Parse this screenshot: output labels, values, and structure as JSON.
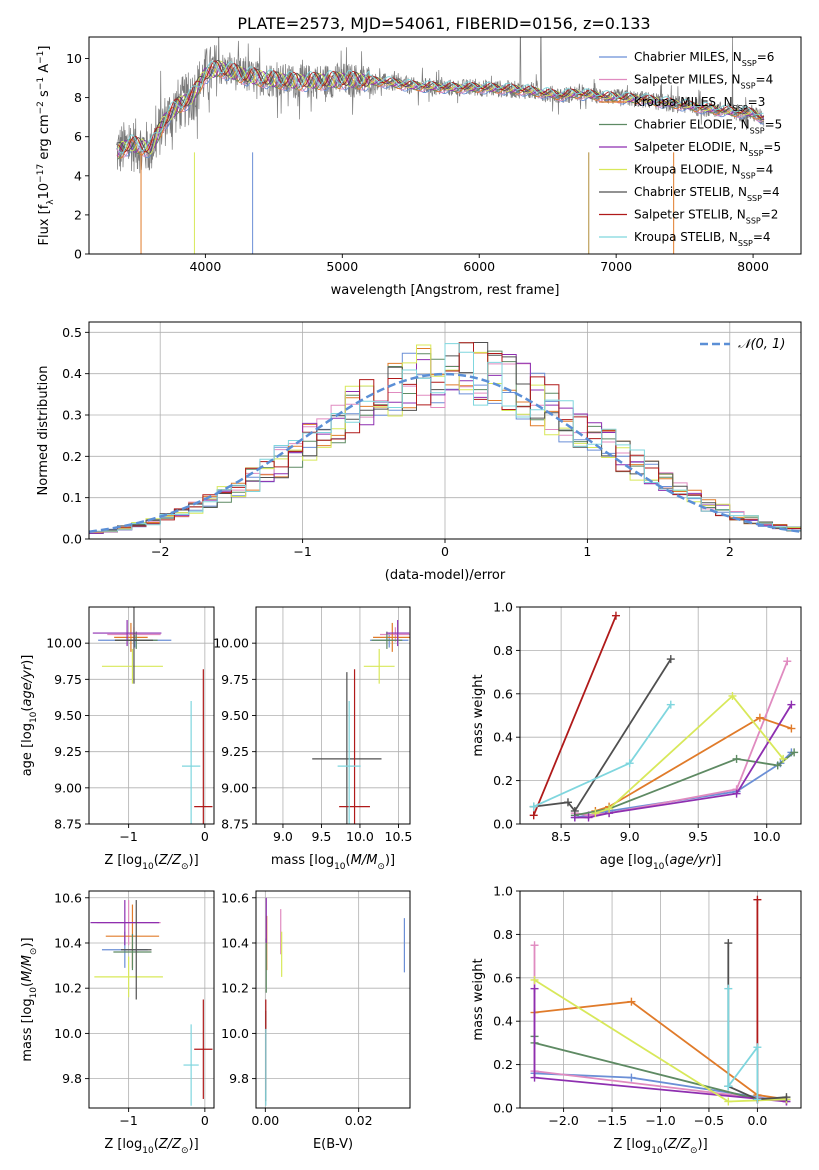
{
  "title": "PLATE=2573, MJD=54061, FIBERID=0156, z=0.133",
  "colors": [
    "#6b8fd6",
    "#e08bc0",
    "#e07b2a",
    "#5e8a63",
    "#8e2fb0",
    "#d8e85a",
    "#505050",
    "#b01a1a",
    "#7fd6de"
  ],
  "chart_data": [
    {
      "id": "spectrum",
      "type": "line",
      "xlabel": "wavelength [Angstrom, rest frame]",
      "ylabel": "Flux [fλ 10⁻¹⁷ erg cm⁻² s⁻¹ A⁻¹]",
      "xlim": [
        3150,
        8350
      ],
      "ylim": [
        0,
        11.1
      ],
      "xticks": [
        4000,
        5000,
        6000,
        7000,
        8000
      ],
      "yticks": [
        0,
        2,
        4,
        6,
        8,
        10
      ],
      "grid": false,
      "legend_position": "top-right",
      "legend": [
        "Chabrier MILES, N_SSP=6",
        "Salpeter MILES, N_SSP=4",
        "Kroupa MILES, N_SSP=3",
        "Chabrier ELODIE, N_SSP=5",
        "Salpeter ELODIE, N_SSP=5",
        "Kroupa ELODIE, N_SSP=4",
        "Chabrier STELIB, N_SSP=4",
        "Salpeter STELIB, N_SSP=2",
        "Kroupa STELIB, N_SSP=4"
      ],
      "legend_display": [
        {
          "pre": "Chabrier MILES, N",
          "sub": "SSP",
          "post": "=6"
        },
        {
          "pre": "Salpeter MILES, N",
          "sub": "SSP",
          "post": "=4"
        },
        {
          "pre": "Kroupa MILES, N",
          "sub": "SSP",
          "post": "=3"
        },
        {
          "pre": "Chabrier ELODIE, N",
          "sub": "SSP",
          "post": "=5"
        },
        {
          "pre": "Salpeter ELODIE, N",
          "sub": "SSP",
          "post": "=5"
        },
        {
          "pre": "Kroupa ELODIE, N",
          "sub": "SSP",
          "post": "=4"
        },
        {
          "pre": "Chabrier STELIB, N",
          "sub": "SSP",
          "post": "=4"
        },
        {
          "pre": "Salpeter STELIB, N",
          "sub": "SSP",
          "post": "=2"
        },
        {
          "pre": "Kroupa STELIB, N",
          "sub": "SSP",
          "post": "=4"
        }
      ],
      "continuum": {
        "x": [
          3350,
          3450,
          3600,
          3700,
          3800,
          3900,
          4000,
          4100,
          4200,
          4300,
          4500,
          4700,
          5000,
          5300,
          5500,
          5800,
          6000,
          6300,
          6500,
          6600,
          6700,
          7000,
          7200,
          7500,
          7800,
          8000,
          8080
        ],
        "y": [
          5.2,
          5.6,
          5.4,
          6.8,
          7.6,
          8.0,
          9.2,
          9.5,
          9.3,
          9.1,
          8.9,
          8.8,
          8.9,
          8.8,
          8.6,
          8.5,
          8.5,
          8.4,
          8.2,
          8.1,
          8.2,
          8.0,
          7.9,
          7.6,
          7.3,
          7.2,
          6.9
        ]
      }
    },
    {
      "id": "residuals",
      "type": "histogram",
      "xlabel": "(data-model)/error",
      "ylabel": "Normed distribution",
      "xlim": [
        -2.5,
        2.5
      ],
      "ylim": [
        0,
        0.525
      ],
      "xticks": [
        -2,
        -1,
        0,
        1,
        2
      ],
      "yticks": [
        0.0,
        0.1,
        0.2,
        0.3,
        0.4,
        0.5
      ],
      "grid": true,
      "legend_position": "top-right",
      "reference_curve": {
        "label": "N(0,1)",
        "display": "𝒩(0, 1)",
        "mu": 0,
        "sigma": 1
      },
      "bin_width": 0.1
    },
    {
      "id": "age_vs_Z",
      "type": "scatter",
      "xlabel": "Z [log10(Z/Z⊙)]",
      "ylabel": "age [log10(age/yr)]",
      "xlim": [
        -1.52,
        0.12
      ],
      "ylim": [
        8.75,
        10.25
      ],
      "xticks": [
        -1,
        0
      ],
      "yticks": [
        8.75,
        9.0,
        9.25,
        9.5,
        9.75,
        10.0
      ],
      "grid": true,
      "points": [
        {
          "x": -0.92,
          "y": 10.02,
          "xerr": 0.48,
          "yerr": 0.05
        },
        {
          "x": -0.93,
          "y": 10.06,
          "xerr": 0.35,
          "yerr": 0.05
        },
        {
          "x": -0.97,
          "y": 10.04,
          "xerr": 0.22,
          "yerr": 0.1
        },
        {
          "x": -0.9,
          "y": 10.02,
          "xerr": 0.28,
          "yerr": 0.06
        },
        {
          "x": -1.02,
          "y": 10.07,
          "xerr": 0.45,
          "yerr": 0.09
        },
        {
          "x": -0.95,
          "y": 9.84,
          "xerr": 0.4,
          "yerr": 0.12
        },
        {
          "x": -0.93,
          "y": 10.02,
          "xerr": 0.25,
          "yerr": 0.3
        },
        {
          "x": -0.02,
          "y": 8.87,
          "xerr": 0.12,
          "yerr": 0.95
        },
        {
          "x": -0.18,
          "y": 9.15,
          "xerr": 0.12,
          "yerr": 0.45
        }
      ]
    },
    {
      "id": "age_vs_mass",
      "type": "scatter",
      "xlabel": "mass [log10(M/M⊙)]",
      "ylabel": "",
      "xlim": [
        8.65,
        10.65
      ],
      "ylim": [
        8.75,
        10.25
      ],
      "xticks": [
        9.0,
        9.5,
        10.0,
        10.5
      ],
      "yticks": [
        8.75,
        9.0,
        9.25,
        9.5,
        9.75,
        10.0
      ],
      "grid": true,
      "points": [
        {
          "x": 10.38,
          "y": 10.02,
          "xerr": 0.25,
          "yerr": 0.05
        },
        {
          "x": 10.46,
          "y": 10.06,
          "xerr": 0.2,
          "yerr": 0.05
        },
        {
          "x": 10.42,
          "y": 10.04,
          "xerr": 0.25,
          "yerr": 0.1
        },
        {
          "x": 10.35,
          "y": 10.02,
          "xerr": 0.2,
          "yerr": 0.06
        },
        {
          "x": 10.49,
          "y": 10.07,
          "xerr": 0.15,
          "yerr": 0.09
        },
        {
          "x": 10.25,
          "y": 9.84,
          "xerr": 0.2,
          "yerr": 0.12
        },
        {
          "x": 9.83,
          "y": 9.2,
          "xerr": 0.45,
          "yerr": 0.6
        },
        {
          "x": 9.93,
          "y": 8.87,
          "xerr": 0.2,
          "yerr": 0.95
        },
        {
          "x": 9.86,
          "y": 9.15,
          "xerr": 0.15,
          "yerr": 0.45
        }
      ]
    },
    {
      "id": "massweight_vs_age",
      "type": "line",
      "xlabel": "age [log10(age/yr)]",
      "ylabel": "mass weight",
      "xlim": [
        8.2,
        10.25
      ],
      "ylim": [
        0.0,
        1.0
      ],
      "xticks": [
        8.5,
        9.0,
        9.5,
        10.0
      ],
      "yticks": [
        0.0,
        0.2,
        0.4,
        0.6,
        0.8,
        1.0
      ],
      "grid": true,
      "series": [
        {
          "x": [
            8.6,
            8.7,
            8.85,
            9.78,
            10.1,
            10.18
          ],
          "y": [
            0.03,
            0.04,
            0.06,
            0.15,
            0.28,
            0.33
          ]
        },
        {
          "x": [
            8.6,
            8.7,
            8.85,
            9.78,
            10.15
          ],
          "y": [
            0.05,
            0.04,
            0.05,
            0.16,
            0.75
          ]
        },
        {
          "x": [
            8.75,
            8.85,
            9.95,
            10.18
          ],
          "y": [
            0.06,
            0.08,
            0.49,
            0.44
          ]
        },
        {
          "x": [
            8.6,
            8.85,
            9.78,
            10.08,
            10.2
          ],
          "y": [
            0.04,
            0.07,
            0.3,
            0.27,
            0.33
          ]
        },
        {
          "x": [
            8.6,
            8.7,
            8.85,
            9.78,
            10.18
          ],
          "y": [
            0.03,
            0.03,
            0.05,
            0.14,
            0.55
          ]
        },
        {
          "x": [
            8.75,
            8.85,
            9.75,
            10.12
          ],
          "y": [
            0.05,
            0.07,
            0.59,
            0.3
          ]
        },
        {
          "x": [
            8.3,
            8.55,
            8.6,
            9.3
          ],
          "y": [
            0.08,
            0.1,
            0.06,
            0.76
          ]
        },
        {
          "x": [
            8.3,
            8.9
          ],
          "y": [
            0.04,
            0.96
          ]
        },
        {
          "x": [
            8.3,
            9.0,
            9.3
          ],
          "y": [
            0.08,
            0.28,
            0.55
          ]
        }
      ]
    },
    {
      "id": "mass_vs_Z",
      "type": "scatter",
      "xlabel": "Z [log10(Z/Z⊙)]",
      "ylabel": "mass [log10(M/M⊙)]",
      "xlim": [
        -1.52,
        0.12
      ],
      "ylim": [
        9.67,
        10.63
      ],
      "xticks": [
        -1,
        0
      ],
      "yticks": [
        9.8,
        10.0,
        10.2,
        10.4,
        10.6
      ],
      "grid": true,
      "points": [
        {
          "x": -1.05,
          "y": 10.37,
          "xerr": 0.3,
          "yerr": 0.08
        },
        {
          "x": -1.0,
          "y": 10.49,
          "xerr": 0.42,
          "yerr": 0.1
        },
        {
          "x": -0.95,
          "y": 10.43,
          "xerr": 0.35,
          "yerr": 0.14
        },
        {
          "x": -0.95,
          "y": 10.36,
          "xerr": 0.25,
          "yerr": 0.08
        },
        {
          "x": -1.05,
          "y": 10.49,
          "xerr": 0.45,
          "yerr": 0.1
        },
        {
          "x": -1.0,
          "y": 10.25,
          "xerr": 0.45,
          "yerr": 0.09
        },
        {
          "x": -0.9,
          "y": 10.37,
          "xerr": 0.2,
          "yerr": 0.22
        },
        {
          "x": -0.02,
          "y": 9.93,
          "xerr": 0.12,
          "yerr": 0.22
        },
        {
          "x": -0.18,
          "y": 9.86,
          "xerr": 0.1,
          "yerr": 0.18
        }
      ]
    },
    {
      "id": "mass_vs_ebv",
      "type": "scatter",
      "xlabel": "E(B-V)",
      "ylabel": "",
      "xlim": [
        -0.002,
        0.031
      ],
      "ylim": [
        9.67,
        10.63
      ],
      "xticks": [
        0.0,
        0.02
      ],
      "yticks": [
        9.8,
        10.0,
        10.2,
        10.4,
        10.6
      ],
      "grid": true,
      "points": [
        {
          "x": 0.0298,
          "y": 10.39,
          "xerr": 0,
          "yerr": 0.12
        },
        {
          "x": 0.0033,
          "y": 10.45,
          "xerr": 0,
          "yerr": 0.1
        },
        {
          "x": 0.0003,
          "y": 10.4,
          "xerr": 0,
          "yerr": 0.12
        },
        {
          "x": 0.0002,
          "y": 10.3,
          "xerr": 0,
          "yerr": 0.12
        },
        {
          "x": 0.0002,
          "y": 10.5,
          "xerr": 0,
          "yerr": 0.1
        },
        {
          "x": 0.0035,
          "y": 10.35,
          "xerr": 0,
          "yerr": 0.1
        },
        {
          "x": 0.0001,
          "y": 9.9,
          "xerr": 0,
          "yerr": 0.2
        },
        {
          "x": 0.0001,
          "y": 9.95,
          "xerr": 0,
          "yerr": 0.2
        },
        {
          "x": 0.0001,
          "y": 9.85,
          "xerr": 0,
          "yerr": 0.17
        }
      ]
    },
    {
      "id": "massweight_vs_Z",
      "type": "line",
      "xlabel": "Z [log10(Z/Z⊙)]",
      "ylabel": "mass weight",
      "xlim": [
        -2.45,
        0.45
      ],
      "ylim": [
        0.0,
        1.0
      ],
      "xticks": [
        -2.0,
        -1.5,
        -1.0,
        -0.5,
        0.0
      ],
      "yticks": [
        0.0,
        0.2,
        0.4,
        0.6,
        0.8,
        1.0
      ],
      "grid": true,
      "series": [
        {
          "x": [
            -2.3,
            -1.3,
            0.3
          ],
          "y": [
            0.16,
            0.14,
            0.03
          ]
        },
        {
          "x": [
            -2.3,
            -2.3,
            0.3
          ],
          "y": [
            0.75,
            0.17,
            0.03
          ]
        },
        {
          "x": [
            -2.3,
            -1.3,
            0.0,
            0.3
          ],
          "y": [
            0.44,
            0.49,
            0.06,
            0.04
          ]
        },
        {
          "x": [
            -2.3,
            -2.3,
            0.0,
            0.3
          ],
          "y": [
            0.33,
            0.3,
            0.04,
            0.04
          ]
        },
        {
          "x": [
            -2.3,
            -2.3,
            0.3
          ],
          "y": [
            0.55,
            0.14,
            0.03
          ]
        },
        {
          "x": [
            -2.3,
            -0.3,
            0.3
          ],
          "y": [
            0.59,
            0.03,
            0.04
          ]
        },
        {
          "x": [
            -0.3,
            -0.3,
            0.0,
            0.3
          ],
          "y": [
            0.76,
            0.1,
            0.04,
            0.05
          ]
        },
        {
          "x": [
            0.0,
            0.0
          ],
          "y": [
            0.96,
            0.04
          ]
        },
        {
          "x": [
            -0.3,
            -0.3,
            0.0,
            0.0
          ],
          "y": [
            0.55,
            0.1,
            0.28,
            0.04
          ]
        }
      ]
    }
  ]
}
